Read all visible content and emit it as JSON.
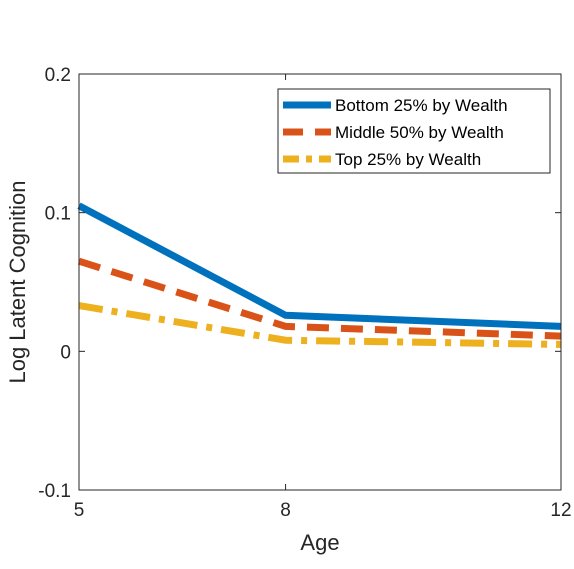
{
  "chart_data": {
    "type": "line",
    "title": "",
    "xlabel": "Age",
    "ylabel": "Log Latent Cognition",
    "xlim": [
      5,
      12
    ],
    "ylim": [
      -0.1,
      0.2
    ],
    "xticks": [
      5,
      8,
      12
    ],
    "xtick_labels": [
      "5",
      "8",
      "12"
    ],
    "yticks": [
      -0.1,
      0,
      0.1,
      0.2
    ],
    "ytick_labels": [
      "-0.1",
      "0",
      "0.1",
      "0.2"
    ],
    "grid": false,
    "legend_position": "top-right",
    "x": [
      5,
      8,
      12
    ],
    "series": [
      {
        "name": "Bottom 25% by Wealth",
        "values": [
          0.105,
          0.026,
          0.018
        ],
        "color": "#0072BD",
        "style": "solid"
      },
      {
        "name": "Middle 50% by Wealth",
        "values": [
          0.065,
          0.018,
          0.011
        ],
        "color": "#D95319",
        "style": "dashed"
      },
      {
        "name": "Top 25% by Wealth",
        "values": [
          0.033,
          0.008,
          0.005
        ],
        "color": "#EDB120",
        "style": "dashdot"
      }
    ]
  }
}
